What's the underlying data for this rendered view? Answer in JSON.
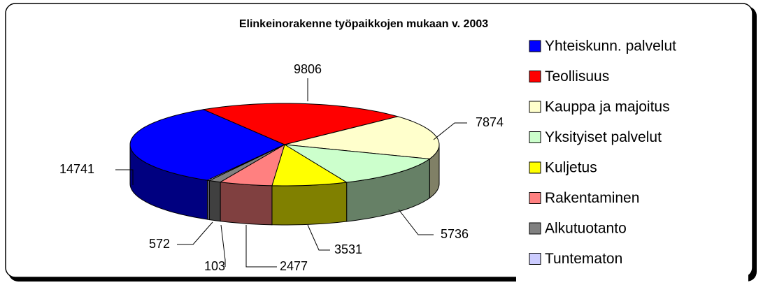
{
  "chart_data": {
    "type": "pie",
    "title": "Elinkeinorakenne työpaikkojen mukaan v. 2003",
    "categories": [
      "Yhteiskunn. palvelut",
      "Teollisuus",
      "Kauppa ja majoitus",
      "Yksityiset palvelut",
      "Kuljetus",
      "Rakentaminen",
      "Alkutuotanto",
      "Tuntematon"
    ],
    "values": [
      14741,
      9806,
      7874,
      5736,
      3531,
      2477,
      572,
      103
    ],
    "colors": [
      "#0000ff",
      "#ff0000",
      "#ffffcc",
      "#ccffcc",
      "#ffff00",
      "#ff8080",
      "#808080",
      "#ccccff"
    ]
  }
}
